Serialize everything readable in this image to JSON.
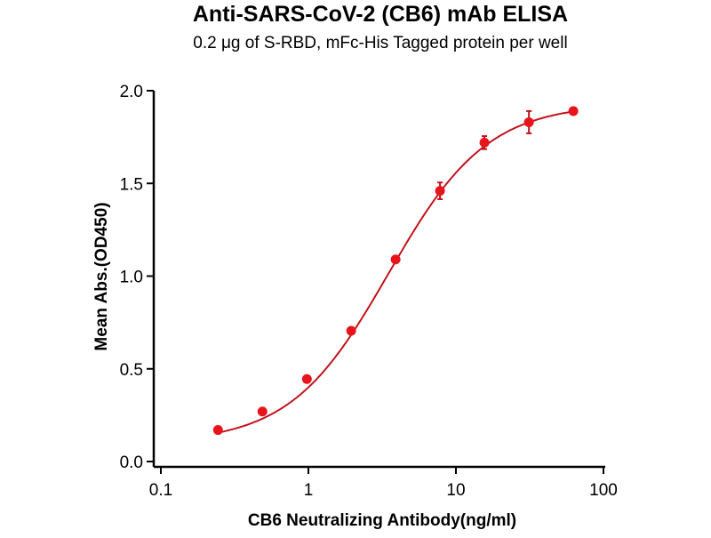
{
  "chart_data": {
    "type": "scatter",
    "title": "Anti-SARS-CoV-2 (CB6) mAb ELISA",
    "subtitle": "0.2 μg of S-RBD, mFc-His Tagged protein per well",
    "xlabel": "CB6 Neutralizing Antibody(ng/ml)",
    "ylabel": "Mean Abs.(OD450)",
    "xscale": "log",
    "xlim": [
      0.1,
      100
    ],
    "ylim": [
      0,
      2.0
    ],
    "xticks": [
      0.1,
      1,
      10,
      100
    ],
    "xtick_labels": [
      "0.1",
      "1",
      "10",
      "100"
    ],
    "yticks": [
      0,
      0.5,
      1.0,
      1.5,
      2.0
    ],
    "ytick_labels": [
      "0.0",
      "0.5",
      "1.0",
      "1.5",
      "2.0"
    ],
    "grid": false,
    "color": "#e8141c",
    "curve_color": "#c0141c",
    "fit": "sigmoidal curve",
    "points": [
      {
        "x": 0.244,
        "y": 0.17,
        "err": 0.01
      },
      {
        "x": 0.488,
        "y": 0.27,
        "err": 0.01
      },
      {
        "x": 0.977,
        "y": 0.445,
        "err": 0.01
      },
      {
        "x": 1.95,
        "y": 0.705,
        "err": 0.01
      },
      {
        "x": 3.9,
        "y": 1.09,
        "err": 0.01
      },
      {
        "x": 7.8,
        "y": 1.46,
        "err": 0.045
      },
      {
        "x": 15.6,
        "y": 1.72,
        "err": 0.035
      },
      {
        "x": 31.25,
        "y": 1.83,
        "err": 0.06
      },
      {
        "x": 62.5,
        "y": 1.89,
        "err": 0.0
      }
    ]
  }
}
